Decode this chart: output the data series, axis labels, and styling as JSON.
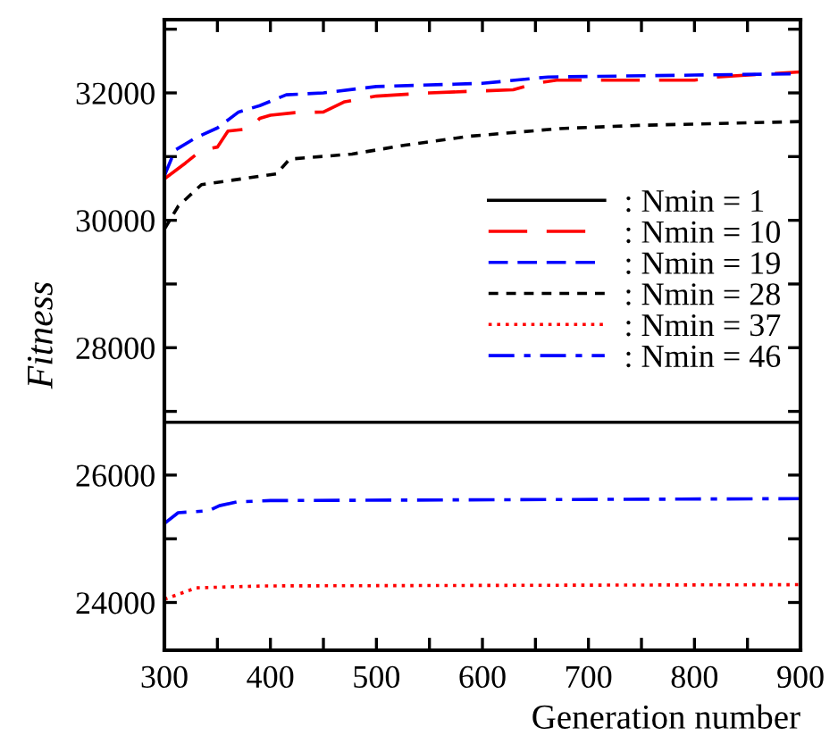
{
  "chart_data": {
    "type": "line",
    "xlabel": "Generation number",
    "ylabel": "Fitness",
    "xlim": [
      300,
      900
    ],
    "xticks": [
      300,
      {
        "value": 350,
        "label": null
      },
      400,
      {
        "value": 450,
        "label": null
      },
      500,
      {
        "value": 550,
        "label": null
      },
      600,
      {
        "value": 650,
        "label": null
      },
      700,
      {
        "value": 750,
        "label": null
      },
      800,
      {
        "value": 850,
        "label": null
      },
      900
    ],
    "ylim": [
      23250,
      33150
    ],
    "yticks": [
      24000,
      {
        "value": 25000,
        "label": null
      },
      26000,
      {
        "value": 27000,
        "label": null
      },
      28000,
      {
        "value": 29000,
        "label": null
      },
      30000,
      {
        "value": 31000,
        "label": null
      },
      32000,
      {
        "value": 33000,
        "label": null
      }
    ],
    "grid": false,
    "legend": "right",
    "marker": "none",
    "ref_lines": [
      {
        "axis": "y",
        "value": 26830,
        "label": null,
        "color": "#000000",
        "line_style": "solid"
      }
    ],
    "series": [
      {
        "name": ": Nmin = 1",
        "color": "#000000",
        "line_style": "solid",
        "values": [
          null
        ]
      },
      {
        "name": ": Nmin = 10",
        "color": "#ff0000",
        "line_style": "dashed",
        "x": [
          300,
          320,
          335,
          350,
          360,
          381,
          390,
          400,
          423,
          450,
          470,
          500,
          550,
          629,
          650,
          670,
          800,
          820,
          900
        ],
        "values": [
          30650,
          30900,
          31100,
          31150,
          31400,
          31440,
          31600,
          31650,
          31690,
          31700,
          31860,
          31950,
          32000,
          32050,
          32150,
          32200,
          32200,
          32250,
          32330
        ]
      },
      {
        "name": ": Nmin = 19",
        "color": "#0000ff",
        "line_style": "dashed",
        "x": [
          300,
          310,
          330,
          350,
          370,
          390,
          415,
          450,
          500,
          600,
          662,
          800,
          900
        ],
        "values": [
          30700,
          31100,
          31300,
          31450,
          31700,
          31800,
          31970,
          32000,
          32100,
          32150,
          32250,
          32280,
          32300
        ]
      },
      {
        "name": ": Nmin = 28",
        "color": "#000000",
        "line_style": "dashed",
        "x": [
          300,
          313,
          335,
          406,
          418,
          477,
          527,
          588,
          673,
          747,
          900
        ],
        "values": [
          29860,
          30220,
          30560,
          30730,
          30960,
          31040,
          31180,
          31320,
          31440,
          31490,
          31550
        ]
      },
      {
        "name": ": Nmin = 37",
        "color": "#ff0000",
        "line_style": "dotted",
        "x": [
          300,
          330,
          393,
          900
        ],
        "values": [
          24050,
          24230,
          24260,
          24280
        ]
      },
      {
        "name": ": Nmin = 46",
        "color": "#0000ff",
        "line_style": "dashdot",
        "x": [
          300,
          313,
          342,
          352,
          369,
          400,
          900
        ],
        "values": [
          25240,
          25410,
          25440,
          25520,
          25580,
          25600,
          25630
        ]
      }
    ]
  }
}
